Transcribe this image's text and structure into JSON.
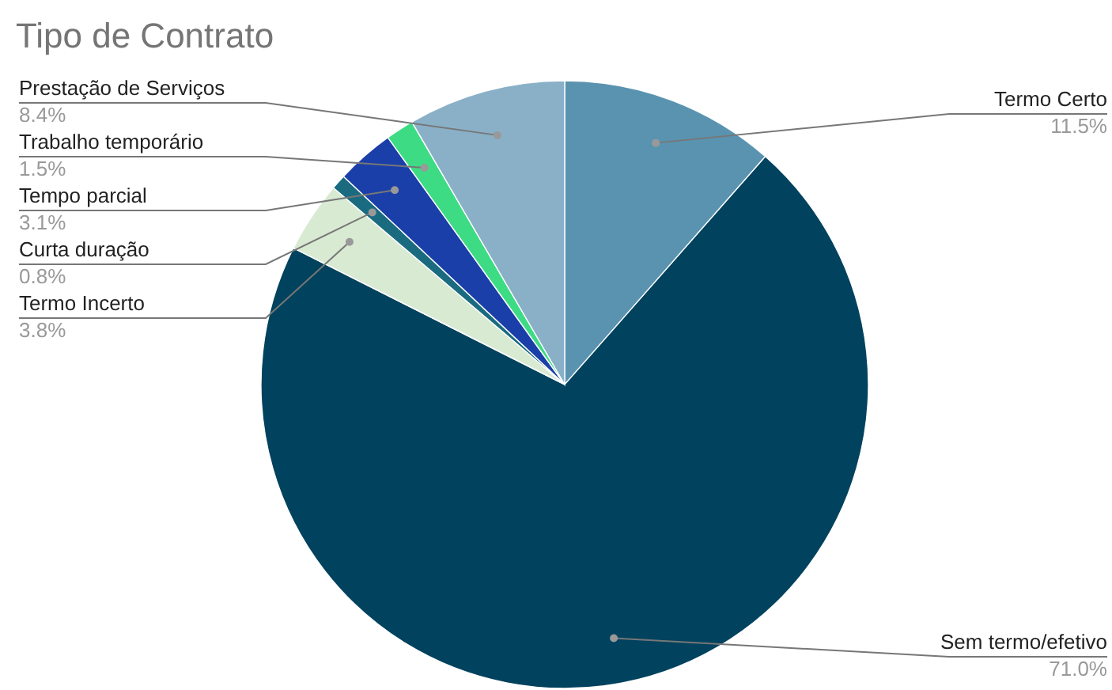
{
  "chart_data": {
    "type": "pie",
    "title": "Tipo de Contrato",
    "categories": [
      "Termo Certo",
      "Sem termo/efetivo",
      "Termo Incerto",
      "Curta duração",
      "Tempo parcial",
      "Trabalho temporário",
      "Prestação de Serviços"
    ],
    "values": [
      11.5,
      71.0,
      3.8,
      0.8,
      3.1,
      1.5,
      8.4
    ],
    "colors": [
      "#5a93b0",
      "#01425e",
      "#d9ead3",
      "#1a6b80",
      "#1a3fa8",
      "#3ddc84",
      "#8ab0c8"
    ],
    "value_labels": [
      "11.5%",
      "71.0%",
      "3.8%",
      "0.8%",
      "3.1%",
      "1.5%",
      "8.4%"
    ]
  }
}
